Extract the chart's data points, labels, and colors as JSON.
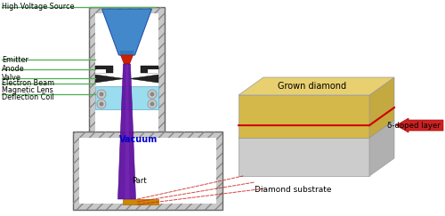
{
  "bg_color": "#ffffff",
  "fig_width": 5.0,
  "fig_height": 2.43,
  "dpi": 100,
  "labels": {
    "high_voltage": "High Voltage Source",
    "emitter": "Emitter",
    "anode": "Anode",
    "valve": "Valve",
    "electron_beam": "Electron Beam",
    "magnetic_lens": "Magnetic Lens",
    "deflection_coil": "Deflection Coil",
    "vacuum": "Vacuum",
    "part": "Part",
    "grown_diamond": "Grown diamond",
    "diamond_substrate": "Diamond substrate",
    "delta_doped": "δ-doped layer"
  },
  "colors": {
    "outer_box_fill": "#d0d0d0",
    "inner_fill": "#ffffff",
    "gun_blue": "#4488cc",
    "gun_blue2": "#2255aa",
    "gun_blue_side": "#3377bb",
    "emitter_red": "#cc2200",
    "beam_purple": "#6010a0",
    "beam_highlight": "#8030c0",
    "anode_black": "#222222",
    "coil_cyan": "#99ddee",
    "coil_border": "#66aacc",
    "circle_gray": "#999999",
    "part_orange": "#cc8800",
    "part_edge": "#aa6600",
    "diamond_front": "#d4b84a",
    "diamond_top": "#e8d070",
    "diamond_side": "#c4a840",
    "substrate_front": "#cccccc",
    "substrate_top": "#c0c0c0",
    "substrate_side": "#b0b0b0",
    "delta_red": "#cc0000",
    "arrow_red": "#cc2222",
    "label_green": "#4caf50",
    "vacuum_blue": "#0000cc",
    "dashed_red": "#cc2222",
    "hatch_edge": "#888888"
  }
}
